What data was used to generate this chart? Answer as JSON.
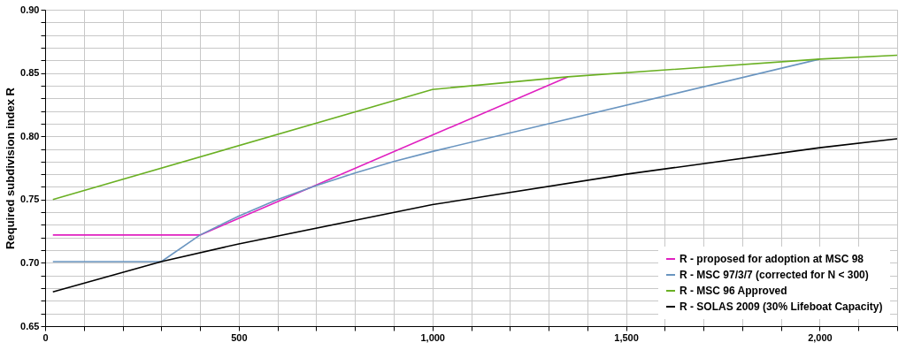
{
  "chart_data": {
    "type": "line",
    "ylabel": "Required subdivision index  R",
    "xlim": [
      0,
      2200
    ],
    "ylim": [
      0.65,
      0.9
    ],
    "xticks": [
      0,
      {
        "value": 100,
        "label": null
      },
      {
        "value": 200,
        "label": null
      },
      {
        "value": 300,
        "label": null
      },
      {
        "value": 400,
        "label": null
      },
      500,
      {
        "value": 600,
        "label": null
      },
      {
        "value": 700,
        "label": null
      },
      {
        "value": 800,
        "label": null
      },
      {
        "value": 900,
        "label": null
      },
      {
        "value": 1000,
        "label": "1,000"
      },
      {
        "value": 1100,
        "label": null
      },
      {
        "value": 1200,
        "label": null
      },
      {
        "value": 1300,
        "label": null
      },
      {
        "value": 1400,
        "label": null
      },
      {
        "value": 1500,
        "label": "1,500"
      },
      {
        "value": 1600,
        "label": null
      },
      {
        "value": 1700,
        "label": null
      },
      {
        "value": 1800,
        "label": null
      },
      {
        "value": 1900,
        "label": null
      },
      {
        "value": 2000,
        "label": "2,000"
      },
      {
        "value": 2100,
        "label": null
      },
      {
        "value": 2200,
        "label": null
      }
    ],
    "yticks": [
      {
        "value": 0.65,
        "label": "0.65"
      },
      {
        "value": 0.66,
        "label": null
      },
      {
        "value": 0.67,
        "label": null
      },
      {
        "value": 0.68,
        "label": null
      },
      {
        "value": 0.69,
        "label": null
      },
      {
        "value": 0.7,
        "label": "0.70"
      },
      {
        "value": 0.71,
        "label": null
      },
      {
        "value": 0.72,
        "label": null
      },
      {
        "value": 0.73,
        "label": null
      },
      {
        "value": 0.74,
        "label": null
      },
      {
        "value": 0.75,
        "label": "0.75"
      },
      {
        "value": 0.76,
        "label": null
      },
      {
        "value": 0.77,
        "label": null
      },
      {
        "value": 0.78,
        "label": null
      },
      {
        "value": 0.79,
        "label": null
      },
      {
        "value": 0.8,
        "label": "0.80"
      },
      {
        "value": 0.81,
        "label": null
      },
      {
        "value": 0.82,
        "label": null
      },
      {
        "value": 0.83,
        "label": null
      },
      {
        "value": 0.84,
        "label": null
      },
      {
        "value": 0.85,
        "label": "0.85"
      },
      {
        "value": 0.86,
        "label": null
      },
      {
        "value": 0.87,
        "label": null
      },
      {
        "value": 0.88,
        "label": null
      },
      {
        "value": 0.89,
        "label": null
      },
      {
        "value": 0.9,
        "label": "0.90"
      }
    ],
    "grid": true,
    "legend": "bottom right",
    "marker": "none",
    "line_style": "solid",
    "series": [
      {
        "name": "R - proposed for adoption at MSC 98",
        "color": "#e020c0",
        "x": [
          20,
          400,
          1350
        ],
        "values": [
          0.722,
          0.722,
          0.847
        ]
      },
      {
        "name": "R - MSC 97/3/7 (corrected for N < 300)",
        "color": "#6a95c0",
        "x": [
          20,
          300,
          400,
          500,
          600,
          700,
          800,
          900,
          1000,
          2000
        ],
        "values": [
          0.701,
          0.701,
          0.722,
          0.737,
          0.75,
          0.761,
          0.771,
          0.78,
          0.788,
          0.861
        ]
      },
      {
        "name": "R - MSC 96 Approved",
        "color": "#6ab023",
        "x": [
          20,
          1000,
          1350,
          2000,
          2200
        ],
        "values": [
          0.75,
          0.837,
          0.847,
          0.861,
          0.864
        ]
      },
      {
        "name": "R - SOLAS 2009 (30% Lifeboat Capacity)",
        "color": "#000000",
        "x": [
          20,
          300,
          500,
          1000,
          1500,
          2000,
          2200
        ],
        "values": [
          0.677,
          0.701,
          0.715,
          0.746,
          0.77,
          0.791,
          0.798
        ]
      }
    ]
  }
}
